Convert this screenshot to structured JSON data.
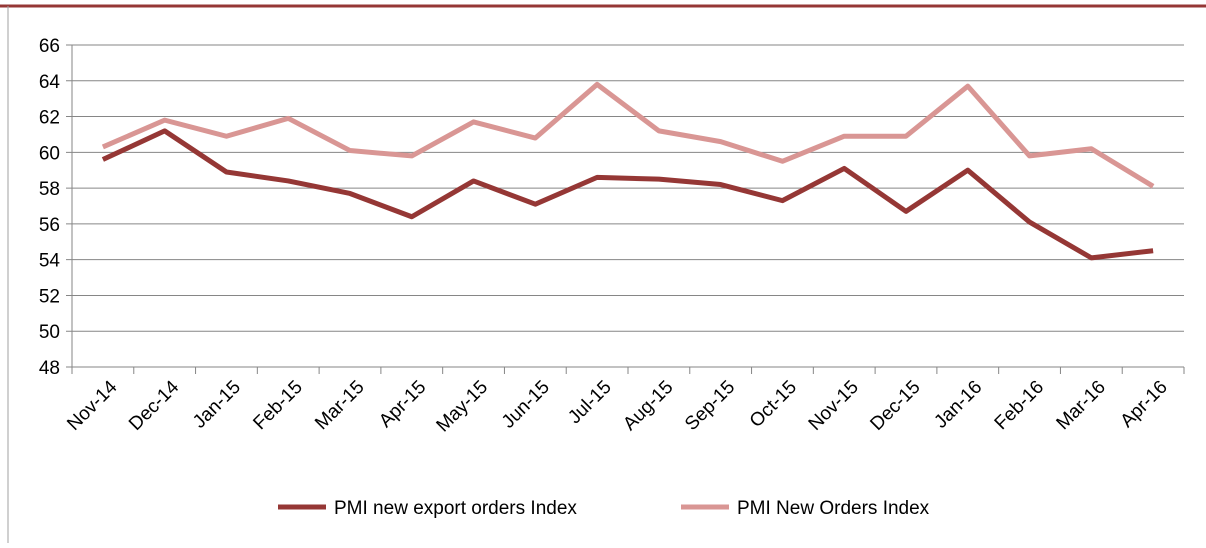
{
  "chart_data": {
    "type": "line",
    "categories": [
      "Nov-14",
      "Dec-14",
      "Jan-15",
      "Feb-15",
      "Mar-15",
      "Apr-15",
      "May-15",
      "Jun-15",
      "Jul-15",
      "Aug-15",
      "Sep-15",
      "Oct-15",
      "Nov-15",
      "Dec-15",
      "Jan-16",
      "Feb-16",
      "Mar-16",
      "Apr-16"
    ],
    "series": [
      {
        "name": "PMI new export orders Index",
        "color": "#953735",
        "values": [
          59.6,
          61.2,
          58.9,
          58.4,
          57.7,
          56.4,
          58.4,
          57.1,
          58.6,
          58.5,
          58.2,
          57.3,
          59.1,
          56.7,
          59.0,
          56.1,
          54.1,
          54.5
        ]
      },
      {
        "name": "PMI New Orders Index",
        "color": "#d99694",
        "values": [
          60.3,
          61.8,
          60.9,
          61.9,
          60.1,
          59.8,
          61.7,
          60.8,
          63.8,
          61.2,
          60.6,
          59.5,
          60.9,
          60.9,
          63.7,
          59.8,
          60.2,
          58.1
        ]
      }
    ],
    "ylim": [
      48,
      66
    ],
    "yticks": [
      48,
      50,
      52,
      54,
      56,
      58,
      60,
      62,
      64,
      66
    ],
    "grid": true
  }
}
